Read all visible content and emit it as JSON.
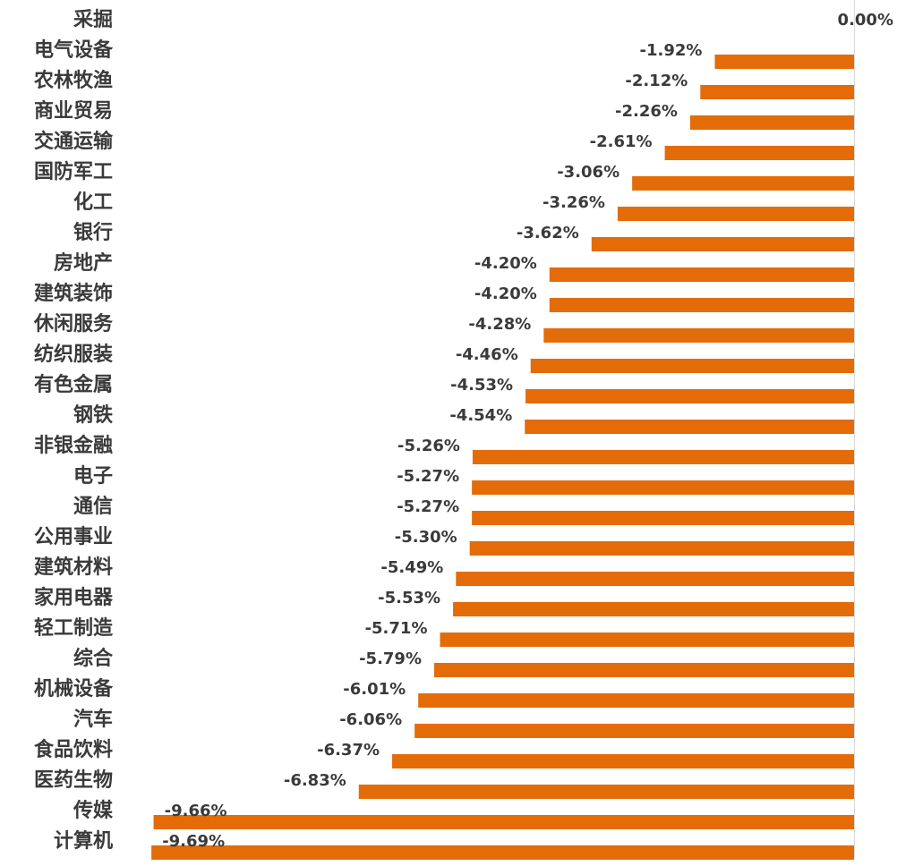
{
  "chart_data": {
    "type": "bar",
    "orientation": "horizontal",
    "categories": [
      "采掘",
      "电气设备",
      "农林牧渔",
      "商业贸易",
      "交通运输",
      "国防军工",
      "化工",
      "银行",
      "房地产",
      "建筑装饰",
      "休闲服务",
      "纺织服装",
      "有色金属",
      "钢铁",
      "非银金融",
      "电子",
      "通信",
      "公用事业",
      "建筑材料",
      "家用电器",
      "轻工制造",
      "综合",
      "机械设备",
      "汽车",
      "食品饮料",
      "医药生物",
      "传媒",
      "计算机"
    ],
    "values": [
      0.0,
      -1.92,
      -2.12,
      -2.26,
      -2.61,
      -3.06,
      -3.26,
      -3.62,
      -4.2,
      -4.2,
      -4.28,
      -4.46,
      -4.53,
      -4.54,
      -5.26,
      -5.27,
      -5.27,
      -5.3,
      -5.49,
      -5.53,
      -5.71,
      -5.79,
      -6.01,
      -6.06,
      -6.37,
      -6.83,
      -9.66,
      -9.69
    ],
    "value_labels": [
      "0.00%",
      "-1.92%",
      "-2.12%",
      "-2.26%",
      "-2.61%",
      "-3.06%",
      "-3.26%",
      "-3.62%",
      "-4.20%",
      "-4.20%",
      "-4.28%",
      "-4.46%",
      "-4.53%",
      "-4.54%",
      "-5.26%",
      "-5.27%",
      "-5.27%",
      "-5.30%",
      "-5.49%",
      "-5.53%",
      "-5.71%",
      "-5.79%",
      "-6.01%",
      "-6.06%",
      "-6.37%",
      "-6.83%",
      "-9.66%",
      "-9.69%"
    ],
    "unit": "%",
    "xlim": [
      -9.69,
      0
    ],
    "title": "",
    "xlabel": "",
    "ylabel": "",
    "grid": false,
    "legend": "none",
    "bar_color": "#E36C09",
    "axis_color": "#d9d9d9",
    "text_color": "#3a3a3a"
  }
}
